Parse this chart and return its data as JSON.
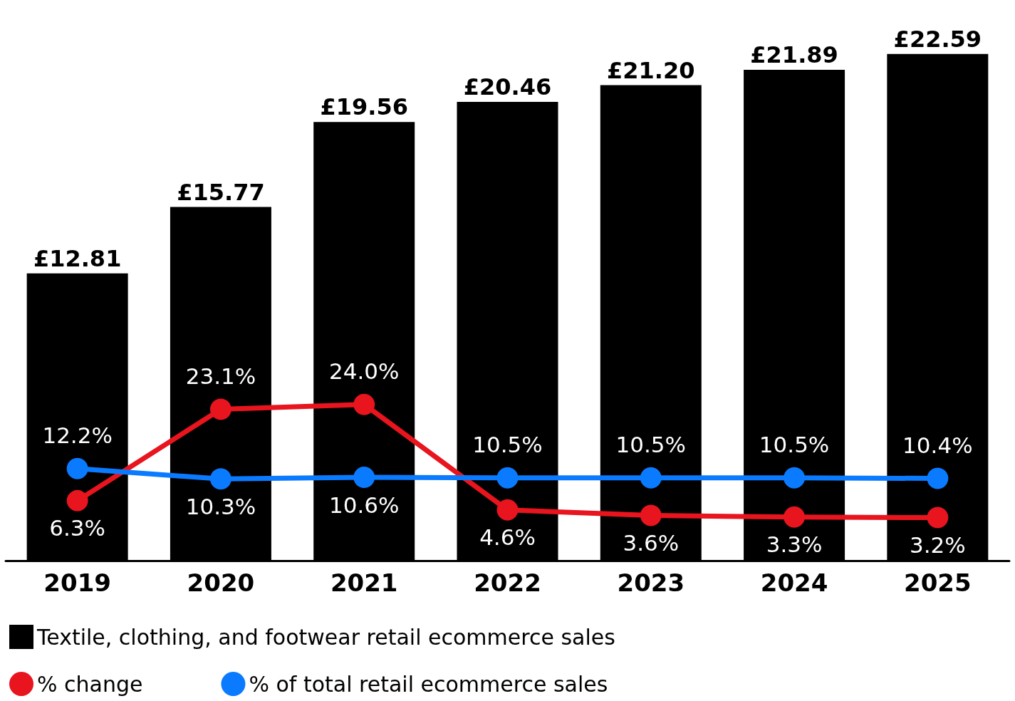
{
  "chart_data": {
    "type": "bar",
    "categories": [
      "2019",
      "2020",
      "2021",
      "2022",
      "2023",
      "2024",
      "2025"
    ],
    "series": [
      {
        "name": "Textile, clothing, and footwear retail ecommerce sales",
        "color": "#000000",
        "values": [
          12.81,
          15.77,
          19.56,
          20.46,
          21.2,
          21.89,
          22.59
        ],
        "value_labels": [
          "£12.81",
          "£15.77",
          "£19.56",
          "£20.46",
          "£21.20",
          "£21.89",
          "£22.59"
        ]
      },
      {
        "name": "% change",
        "type": "line",
        "axis": "y2",
        "color": "#e8141e",
        "values": [
          6.3,
          23.1,
          24.0,
          4.6,
          3.6,
          3.3,
          3.2
        ],
        "value_labels": [
          "6.3%",
          "23.1%",
          "24.0%",
          "4.6%",
          "3.6%",
          "3.3%",
          "3.2%"
        ]
      },
      {
        "name": "% of total retail ecommerce sales",
        "type": "line",
        "axis": "y2",
        "color": "#0a7bff",
        "values": [
          12.2,
          10.3,
          10.6,
          10.5,
          10.5,
          10.5,
          10.4
        ],
        "value_labels": [
          "12.2%",
          "10.3%",
          "10.6%",
          "10.5%",
          "10.5%",
          "10.5%",
          "10.4%"
        ]
      }
    ],
    "marker": "circle",
    "legend": "bottom left"
  }
}
